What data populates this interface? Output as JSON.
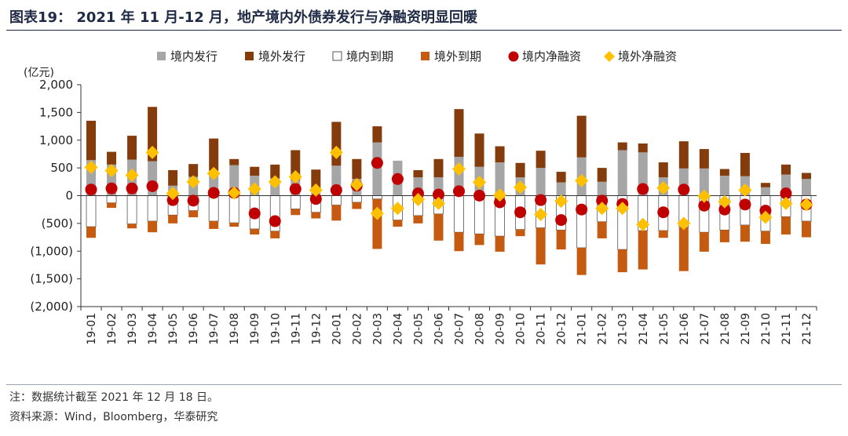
{
  "title": "图表19： 2021 年 11 月-12 月，地产境内外债券发行与净融资明显回暖",
  "note": "注：数据统计截至 2021 年 12 月 18 日。",
  "source": "资料来源：Wind，Bloomberg，华泰研究",
  "colors": {
    "domestic_issue": "#a6a6a6",
    "overseas_issue": "#843c0c",
    "domestic_maturity": "#ffffff",
    "overseas_maturity": "#c55a11",
    "domestic_net": "#c00000",
    "overseas_net": "#ffc000"
  },
  "chart_data": {
    "type": "bar",
    "stacked": true,
    "ylabel": "(亿元)",
    "ylim": [
      -2000,
      2000
    ],
    "yticks": [
      2000,
      1500,
      1000,
      500,
      0,
      -500,
      -1000,
      -1500,
      -2000
    ],
    "ytick_labels": [
      "2,000",
      "1,500",
      "1,000",
      "500",
      "0",
      "(500)",
      "(1,000)",
      "(1,500)",
      "(2,000)"
    ],
    "legend_position": "top",
    "categories": [
      "19-01",
      "19-02",
      "19-03",
      "19-04",
      "19-05",
      "19-06",
      "19-07",
      "19-08",
      "19-09",
      "19-10",
      "19-11",
      "19-12",
      "20-01",
      "20-02",
      "20-03",
      "20-04",
      "20-05",
      "20-06",
      "20-07",
      "20-08",
      "20-09",
      "20-10",
      "20-11",
      "20-12",
      "21-01",
      "21-02",
      "21-03",
      "21-04",
      "21-05",
      "21-06",
      "21-07",
      "21-08",
      "21-09",
      "21-10",
      "21-11",
      "21-12"
    ],
    "series": [
      {
        "name": "境内发行",
        "kind": "bar",
        "values": [
          640,
          560,
          650,
          620,
          180,
          340,
          450,
          550,
          360,
          310,
          280,
          140,
          540,
          300,
          960,
          630,
          330,
          330,
          700,
          520,
          600,
          330,
          500,
          240,
          690,
          250,
          820,
          780,
          330,
          490,
          490,
          360,
          350,
          150,
          380,
          300
        ]
      },
      {
        "name": "境外发行",
        "kind": "bar",
        "values": [
          710,
          230,
          430,
          980,
          280,
          230,
          580,
          110,
          160,
          250,
          540,
          330,
          790,
          360,
          290,
          0,
          130,
          330,
          860,
          600,
          290,
          260,
          310,
          190,
          750,
          250,
          140,
          160,
          270,
          490,
          350,
          120,
          420,
          80,
          180,
          110
        ]
      },
      {
        "name": "境内到期",
        "kind": "bar",
        "values": [
          -560,
          -130,
          -510,
          -460,
          -350,
          -270,
          -460,
          -490,
          -600,
          -640,
          -240,
          -300,
          -170,
          -120,
          -60,
          -440,
          -360,
          -330,
          -660,
          -690,
          -730,
          -610,
          -580,
          -620,
          -940,
          -470,
          -970,
          -630,
          -630,
          -570,
          -660,
          -620,
          -530,
          -640,
          -380,
          -460
        ]
      },
      {
        "name": "境外到期",
        "kind": "bar",
        "values": [
          -200,
          -90,
          -80,
          -200,
          -150,
          -120,
          -140,
          -70,
          -100,
          -130,
          -110,
          -110,
          -280,
          -120,
          -900,
          -120,
          -140,
          -480,
          -340,
          -200,
          -280,
          -120,
          -660,
          -350,
          -490,
          -300,
          -410,
          -700,
          -130,
          -790,
          -350,
          -220,
          -300,
          -230,
          -320,
          -290
        ]
      },
      {
        "name": "境内净融资",
        "kind": "marker",
        "values": [
          110,
          130,
          130,
          170,
          -80,
          -90,
          50,
          50,
          -320,
          -460,
          120,
          -60,
          100,
          180,
          590,
          300,
          40,
          20,
          80,
          0,
          -120,
          -300,
          -80,
          -440,
          -250,
          -90,
          -150,
          120,
          -300,
          110,
          -180,
          -250,
          -160,
          -270,
          40,
          -160
        ]
      },
      {
        "name": "境外净融资",
        "kind": "marker",
        "values": [
          510,
          450,
          370,
          780,
          40,
          250,
          400,
          50,
          120,
          250,
          340,
          100,
          780,
          200,
          -320,
          -230,
          -70,
          -140,
          480,
          240,
          10,
          150,
          -340,
          -100,
          270,
          -230,
          -230,
          -520,
          140,
          -500,
          -10,
          -110,
          100,
          -390,
          -140,
          -160
        ]
      }
    ]
  }
}
